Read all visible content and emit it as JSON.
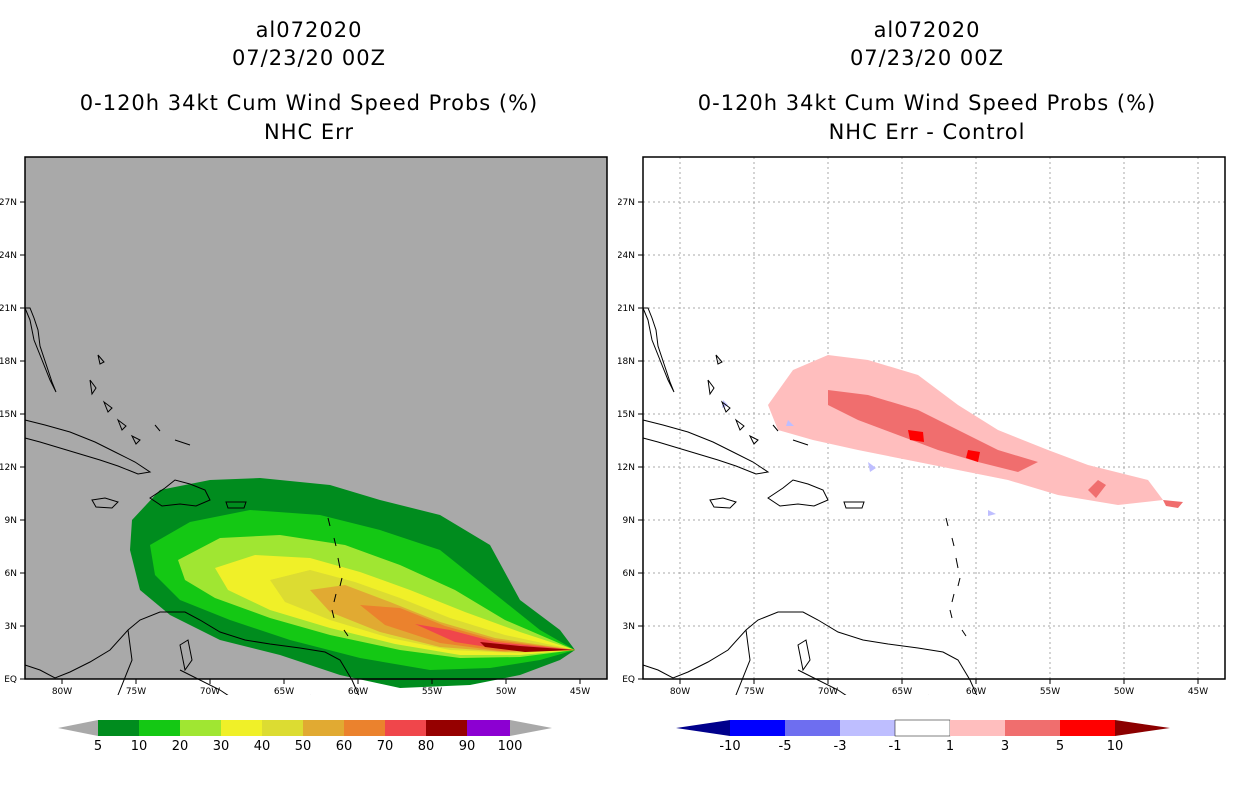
{
  "colors": {
    "ocean_left": "#a9a9a9",
    "ocean_right": "#ffffff",
    "prob_scale": [
      "#008c1e",
      "#14c814",
      "#a0e632",
      "#f0f028",
      "#dcdc32",
      "#e1aa32",
      "#eb822d",
      "#f0464b",
      "#960000",
      "#8c00d2"
    ],
    "diff_scale": [
      "#00008c",
      "#0000ff",
      "#6e6ef0",
      "#bebeff",
      "#ffffff",
      "#ffbebe",
      "#f06e6e",
      "#ff0000",
      "#8c0000"
    ],
    "arrow": "#a9a9a9"
  },
  "left_panel": {
    "storm_id": "al072020",
    "date": "07/23/20 00Z",
    "title": "0-120h 34kt Cum Wind Speed Probs (%)",
    "subtitle": "NHC Err",
    "colorbar_labels": [
      "5",
      "10",
      "20",
      "30",
      "40",
      "50",
      "60",
      "70",
      "80",
      "90",
      "100"
    ]
  },
  "right_panel": {
    "storm_id": "al072020",
    "date": "07/23/20 00Z",
    "title": "0-120h 34kt Cum Wind Speed Probs (%)",
    "subtitle": "NHC Err - Control",
    "colorbar_labels": [
      "-10",
      "-5",
      "-3",
      "-1",
      "1",
      "3",
      "5",
      "10"
    ]
  },
  "axes": {
    "lat_labels": [
      "EQ",
      "3N",
      "6N",
      "9N",
      "12N",
      "15N",
      "18N",
      "21N",
      "24N",
      "27N"
    ],
    "lon_labels": [
      "80W",
      "75W",
      "70W",
      "65W",
      "60W",
      "55W",
      "50W",
      "45W"
    ]
  }
}
